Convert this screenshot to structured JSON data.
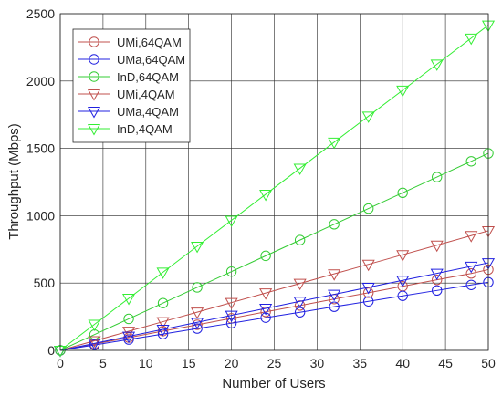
{
  "chart_data": {
    "type": "line",
    "title": "",
    "xlabel": "Number of Users",
    "ylabel": "Throughput (Mbps)",
    "xlim": [
      0,
      50
    ],
    "ylim": [
      0,
      2500
    ],
    "xticks": [
      0,
      5,
      10,
      15,
      20,
      25,
      30,
      35,
      40,
      45,
      50
    ],
    "yticks": [
      0,
      500,
      1000,
      1500,
      2000,
      2500
    ],
    "grid": true,
    "legend_position": "top-left",
    "x": [
      0,
      4,
      8,
      12,
      16,
      20,
      24,
      28,
      32,
      36,
      40,
      44,
      48,
      50
    ],
    "series": [
      {
        "name": "UMi,64QAM",
        "marker": "circle",
        "color": "#c0504d",
        "values": [
          0,
          47,
          95,
          143,
          190,
          238,
          286,
          333,
          381,
          428,
          476,
          524,
          571,
          600
        ]
      },
      {
        "name": "UMa,64QAM",
        "marker": "circle",
        "color": "#2020e0",
        "values": [
          0,
          40,
          81,
          121,
          162,
          202,
          243,
          283,
          324,
          364,
          405,
          445,
          486,
          506
        ]
      },
      {
        "name": "InD,64QAM",
        "marker": "circle",
        "color": "#33cc33",
        "values": [
          0,
          117,
          234,
          351,
          468,
          585,
          702,
          819,
          936,
          1053,
          1170,
          1287,
          1404,
          1463
        ]
      },
      {
        "name": "UMi,4QAM",
        "marker": "triangle-down",
        "color": "#c0504d",
        "values": [
          0,
          71,
          142,
          213,
          284,
          355,
          426,
          497,
          568,
          639,
          710,
          781,
          852,
          888
        ]
      },
      {
        "name": "UMa,4QAM",
        "marker": "triangle-down",
        "color": "#2020e0",
        "values": [
          0,
          52,
          104,
          156,
          208,
          260,
          312,
          364,
          416,
          468,
          520,
          572,
          624,
          650
        ]
      },
      {
        "name": "InD,4QAM",
        "marker": "triangle-down",
        "color": "#33ee33",
        "values": [
          0,
          193,
          386,
          580,
          773,
          966,
          1159,
          1352,
          1546,
          1739,
          1932,
          2125,
          2318,
          2415
        ]
      }
    ]
  }
}
